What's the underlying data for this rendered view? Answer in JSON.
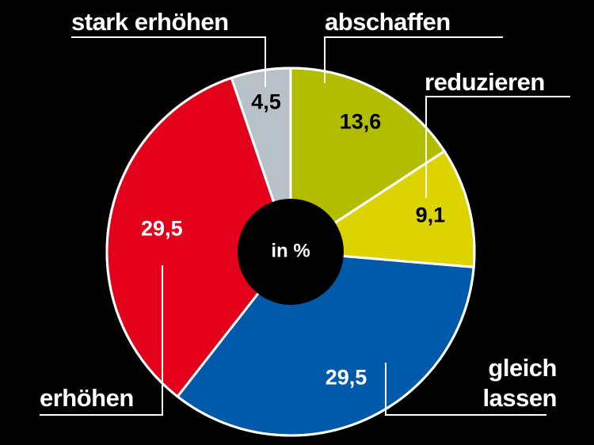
{
  "chart_data": {
    "type": "donut",
    "center_label": "in %",
    "categories": [
      "abschaffen",
      "reduzieren",
      "gleich lassen",
      "erhöhen",
      "stark erhöhen"
    ],
    "values": [
      13.6,
      9.1,
      29.5,
      29.5,
      4.5
    ],
    "value_labels": [
      "13,6",
      "9,1",
      "29,5",
      "29,5",
      "4,5"
    ],
    "colors": [
      "#b3bd00",
      "#dcd300",
      "#005aa9",
      "#e2001a",
      "#b7c1c7"
    ]
  }
}
